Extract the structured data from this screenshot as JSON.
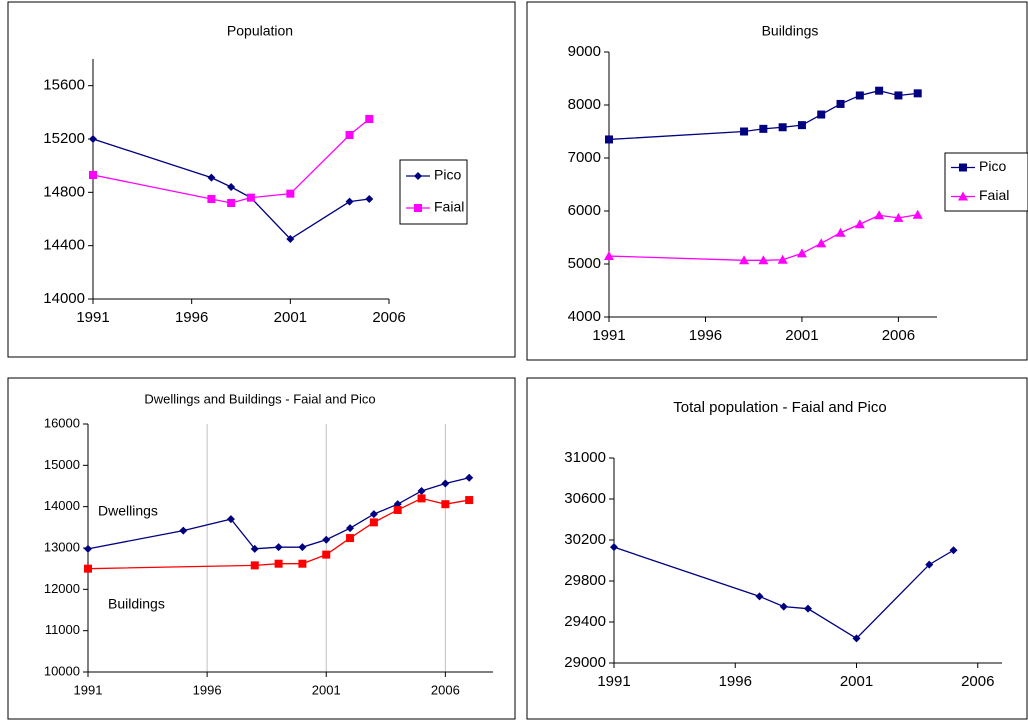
{
  "chart_data": [
    {
      "type": "line",
      "title": "Population",
      "xlim": [
        1991,
        2006
      ],
      "xticks": [
        1991,
        1996,
        2001,
        2006
      ],
      "ylim": [
        14000,
        15800
      ],
      "yticks": [
        14000,
        14400,
        14800,
        15200,
        15600
      ],
      "legend": "right",
      "grid": false,
      "series": [
        {
          "name": "Pico",
          "color": "#000080",
          "marker": "diamond",
          "x": [
            1991,
            1997,
            1998,
            1999,
            2001,
            2004,
            2005
          ],
          "values": [
            15200,
            14910,
            14840,
            14760,
            14450,
            14730,
            14750
          ]
        },
        {
          "name": "Faial",
          "color": "#ff00ff",
          "marker": "square",
          "x": [
            1991,
            1997,
            1998,
            1999,
            2001,
            2004,
            2005
          ],
          "values": [
            14930,
            14750,
            14720,
            14760,
            14790,
            15230,
            15350
          ]
        }
      ]
    },
    {
      "type": "line",
      "title": "Buildings",
      "xlim": [
        1991,
        2008
      ],
      "xticks": [
        1991,
        1996,
        2001,
        2006
      ],
      "ylim": [
        4000,
        9000
      ],
      "yticks": [
        4000,
        5000,
        6000,
        7000,
        8000,
        9000
      ],
      "legend": "right",
      "grid": false,
      "series": [
        {
          "name": "Pico",
          "color": "#000080",
          "marker": "square",
          "x": [
            1991,
            1998,
            1999,
            2000,
            2001,
            2002,
            2003,
            2004,
            2005,
            2006,
            2007
          ],
          "values": [
            7350,
            7500,
            7550,
            7580,
            7620,
            7820,
            8020,
            8180,
            8270,
            8180,
            8220
          ]
        },
        {
          "name": "Faial",
          "color": "#ff00ff",
          "marker": "triangle",
          "x": [
            1991,
            1998,
            1999,
            2000,
            2001,
            2002,
            2003,
            2004,
            2005,
            2006,
            2007
          ],
          "values": [
            5150,
            5070,
            5070,
            5080,
            5200,
            5390,
            5590,
            5750,
            5920,
            5870,
            5930
          ]
        }
      ]
    },
    {
      "type": "line",
      "title": "Dwellings and Buildings - Faial and Pico",
      "xlim": [
        1991,
        2008
      ],
      "xticks": [
        1991,
        1996,
        2001,
        2006
      ],
      "ylim": [
        10000,
        16000
      ],
      "yticks": [
        10000,
        11000,
        12000,
        13000,
        14000,
        15000,
        16000
      ],
      "legend": "inline",
      "grid": true,
      "series": [
        {
          "name": "Dwellings",
          "color": "#000080",
          "marker": "diamond",
          "x": [
            1991,
            1995,
            1997,
            1998,
            1999,
            2000,
            2001,
            2002,
            2003,
            2004,
            2005,
            2006,
            2007
          ],
          "values": [
            12980,
            13420,
            13700,
            12980,
            13020,
            13020,
            13200,
            13480,
            13820,
            14060,
            14380,
            14560,
            14700
          ]
        },
        {
          "name": "Buildings",
          "color": "#ff0000",
          "marker": "square",
          "x": [
            1991,
            1998,
            1999,
            2000,
            2001,
            2002,
            2003,
            2004,
            2005,
            2006,
            2007
          ],
          "values": [
            12500,
            12580,
            12620,
            12620,
            12840,
            13240,
            13620,
            13920,
            14200,
            14060,
            14160
          ]
        }
      ]
    },
    {
      "type": "line",
      "title": "Total population  - Faial and Pico",
      "xlim": [
        1991,
        2007
      ],
      "xticks": [
        1991,
        1996,
        2001,
        2006
      ],
      "ylim": [
        29000,
        31000
      ],
      "yticks": [
        29000,
        29400,
        29800,
        30200,
        30600,
        31000
      ],
      "legend": "none",
      "grid": false,
      "series": [
        {
          "color": "#000080",
          "marker": "diamond",
          "x": [
            1991,
            1997,
            1998,
            1999,
            2001,
            2004,
            2005
          ],
          "values": [
            30130,
            29650,
            29550,
            29530,
            29240,
            29960,
            30100
          ]
        }
      ]
    }
  ]
}
